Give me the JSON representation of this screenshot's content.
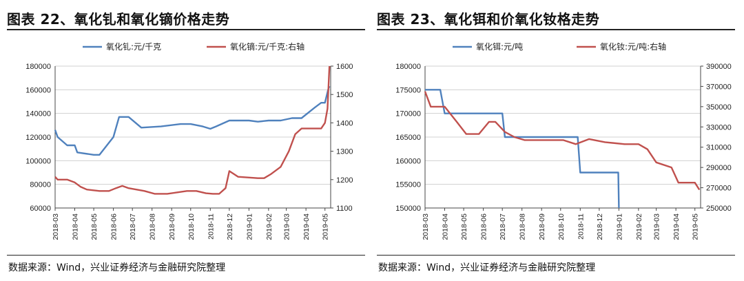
{
  "left_chart": {
    "title": "图表 22、氧化钆和氧化镝价格走势",
    "series_names": [
      "氧化钆:元/千克",
      "氧化镝:元/千克:右轴"
    ],
    "yleft_ticks": [
      60000,
      80000,
      100000,
      120000,
      140000,
      160000,
      180000
    ],
    "yright_ticks": [
      1100,
      1200,
      1300,
      1400,
      1500,
      1600
    ],
    "date_labels": [
      "2018-03",
      "2018-04",
      "2018-05",
      "2018-06",
      "2018-07",
      "2018-08",
      "2018-09",
      "2018-10",
      "2018-11",
      "2018-12",
      "2019-01",
      "2019-02",
      "2019-03",
      "2019-04",
      "2019-05"
    ]
  },
  "right_chart": {
    "title": "图表 23、氧化铒和价氧化钕格走势",
    "series_names": [
      "氧化铒:元/吨",
      "氧化钕:元/吨:右轴"
    ],
    "yleft_ticks": [
      150000,
      155000,
      160000,
      165000,
      170000,
      175000,
      180000
    ],
    "yright_ticks": [
      250000,
      270000,
      290000,
      310000,
      330000,
      350000,
      370000,
      390000
    ],
    "date_labels": [
      "2018-03",
      "2018-04",
      "2018-05",
      "2018-06",
      "2018-07",
      "2018-08",
      "2018-09",
      "2018-10",
      "2018-11",
      "2018-12",
      "2019-01",
      "2019-02",
      "2019-03",
      "2019-04",
      "2019-05"
    ]
  },
  "source_note": "数据来源：Wind，兴业证券经济与金融研究院整理",
  "colors": {
    "blue": "#4f81bd",
    "red": "#c0504d"
  },
  "chart_data": [
    {
      "type": "line",
      "title": "图表 22、氧化钆和氧化镝价格走势",
      "xlabel": "",
      "ylabel": "",
      "ylim_left": [
        60000,
        180000
      ],
      "ylim_right": [
        1100,
        1600
      ],
      "x": [
        "2018-03",
        "2018-04",
        "2018-05",
        "2018-06",
        "2018-07",
        "2018-08",
        "2018-09",
        "2018-10",
        "2018-11",
        "2018-12",
        "2019-01",
        "2019-02",
        "2019-03",
        "2019-04",
        "2019-05"
      ],
      "legend": "top",
      "series": [
        {
          "name": "氧化钆:元/千克",
          "axis": "left",
          "x": [
            "2018-03-01",
            "2018-03-05",
            "2018-03-20",
            "2018-04-01",
            "2018-04-05",
            "2018-05-01",
            "2018-05-10",
            "2018-06-01",
            "2018-06-10",
            "2018-06-25",
            "2018-07-15",
            "2018-08-15",
            "2018-09-15",
            "2018-10-01",
            "2018-10-20",
            "2018-11-01",
            "2018-11-10",
            "2018-12-01",
            "2019-01-01",
            "2019-01-15",
            "2019-02-01",
            "2019-02-20",
            "2019-03-10",
            "2019-03-25",
            "2019-04-15",
            "2019-04-25",
            "2019-05-01",
            "2019-05-06",
            "2019-05-08"
          ],
          "values": [
            126000,
            120000,
            113000,
            113000,
            107000,
            105000,
            105000,
            120000,
            137000,
            137000,
            128000,
            129000,
            131000,
            131000,
            129000,
            127000,
            129000,
            134000,
            134000,
            133000,
            134000,
            134000,
            136000,
            136000,
            145000,
            149000,
            149000,
            160000,
            163000
          ]
        },
        {
          "name": "氧化镝:元/千克:右轴",
          "axis": "right",
          "x": [
            "2018-03-01",
            "2018-03-05",
            "2018-03-20",
            "2018-04-01",
            "2018-04-10",
            "2018-04-20",
            "2018-05-10",
            "2018-05-25",
            "2018-06-05",
            "2018-06-15",
            "2018-06-25",
            "2018-07-20",
            "2018-08-05",
            "2018-08-25",
            "2018-09-10",
            "2018-09-25",
            "2018-10-10",
            "2018-10-25",
            "2018-11-05",
            "2018-11-15",
            "2018-11-25",
            "2018-12-01",
            "2018-12-15",
            "2019-01-15",
            "2019-01-25",
            "2019-02-05",
            "2019-02-20",
            "2019-03-05",
            "2019-03-15",
            "2019-03-25",
            "2019-04-10",
            "2019-04-25",
            "2019-05-01",
            "2019-05-05",
            "2019-05-08"
          ],
          "values": [
            1210,
            1200,
            1200,
            1190,
            1175,
            1165,
            1160,
            1160,
            1170,
            1178,
            1170,
            1160,
            1150,
            1150,
            1155,
            1160,
            1160,
            1152,
            1150,
            1150,
            1170,
            1230,
            1210,
            1205,
            1205,
            1220,
            1245,
            1300,
            1360,
            1380,
            1380,
            1380,
            1400,
            1450,
            1600
          ]
        }
      ]
    },
    {
      "type": "line",
      "title": "图表 23、氧化铒和价氧化钕格走势",
      "xlabel": "",
      "ylabel": "",
      "ylim_left": [
        150000,
        180000
      ],
      "ylim_right": [
        250000,
        390000
      ],
      "x": [
        "2018-03",
        "2018-04",
        "2018-05",
        "2018-06",
        "2018-07",
        "2018-08",
        "2018-09",
        "2018-10",
        "2018-11",
        "2018-12",
        "2019-01",
        "2019-02",
        "2019-03",
        "2019-04",
        "2019-05"
      ],
      "legend": "top",
      "series": [
        {
          "name": "氧化铒:元/吨",
          "axis": "left",
          "x": [
            "2018-03-01",
            "2018-03-25",
            "2018-04-01",
            "2018-07-01",
            "2018-07-05",
            "2018-10-28",
            "2018-11-01",
            "2018-12-31",
            "2019-01-01"
          ],
          "values": [
            175000,
            175000,
            170000,
            170000,
            165000,
            165000,
            157500,
            157500,
            150000
          ]
        },
        {
          "name": "氧化钕:元/吨:右轴",
          "axis": "right",
          "x": [
            "2018-03-01",
            "2018-03-10",
            "2018-04-01",
            "2018-04-20",
            "2018-05-05",
            "2018-05-25",
            "2018-06-10",
            "2018-06-20",
            "2018-07-05",
            "2018-07-20",
            "2018-08-05",
            "2018-09-15",
            "2018-10-05",
            "2018-10-25",
            "2018-11-15",
            "2018-12-10",
            "2019-01-10",
            "2019-02-01",
            "2019-02-15",
            "2019-03-01",
            "2019-03-25",
            "2019-04-05",
            "2019-04-25",
            "2019-05-01",
            "2019-05-08"
          ],
          "values": [
            365000,
            350000,
            350000,
            335000,
            323000,
            323000,
            335000,
            335000,
            325000,
            320000,
            317000,
            317000,
            317000,
            313000,
            318000,
            315000,
            313000,
            313000,
            308000,
            295000,
            290000,
            275000,
            275000,
            275000,
            268000
          ]
        }
      ]
    }
  ]
}
